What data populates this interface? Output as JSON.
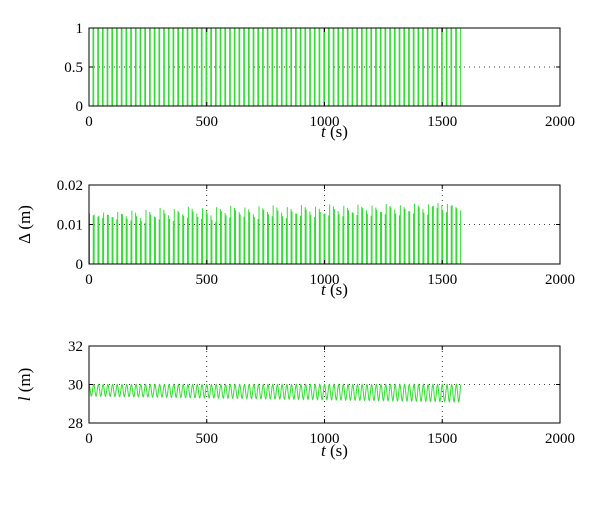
{
  "chart_data": [
    {
      "type": "line",
      "xlabel_var": "t",
      "xlabel_unit": "(s)",
      "ylabel_var": "",
      "ylabel_unit": "",
      "xlim": [
        0,
        2000
      ],
      "ylim": [
        0,
        1
      ],
      "xticks": [
        "0",
        "500",
        "1000",
        "1500",
        "2000"
      ],
      "yticks": [
        "0",
        "0.5",
        "1"
      ],
      "ytick_values": [
        0,
        0.5,
        1
      ],
      "grid": true,
      "series_color": "#33dd33",
      "series": [
        {
          "waveform": "square pulses",
          "t_start": 0,
          "t_end": 1580,
          "period": 20,
          "low": 0,
          "high": 1
        }
      ]
    },
    {
      "type": "line",
      "xlabel_var": "t",
      "xlabel_unit": "(s)",
      "ylabel_var": "Δ",
      "ylabel_unit": "(m)",
      "xlim": [
        0,
        2000
      ],
      "ylim": [
        0,
        0.02
      ],
      "xticks": [
        "0",
        "500",
        "1000",
        "1500",
        "2000"
      ],
      "yticks": [
        "0",
        "0.01",
        "0.02"
      ],
      "ytick_values": [
        0,
        0.01,
        0.02
      ],
      "grid": true,
      "series_color": "#33dd33",
      "series": [
        {
          "waveform": "pulse peaks",
          "t_start": 0,
          "t_end": 1580,
          "period": 20,
          "peaks": [
            0.0128,
            0.0125,
            0.0122,
            0.013,
            0.0124,
            0.0118,
            0.0132,
            0.0126,
            0.0115,
            0.0135,
            0.0121,
            0.0109,
            0.0137,
            0.0125,
            0.0118,
            0.0142,
            0.0128,
            0.0114,
            0.0139,
            0.0131,
            0.0122,
            0.0145,
            0.0133,
            0.0119,
            0.0141,
            0.0128,
            0.0111,
            0.0144,
            0.0134,
            0.0123,
            0.0147,
            0.0136,
            0.0125,
            0.0143,
            0.0131,
            0.0119,
            0.0146,
            0.0137,
            0.0126,
            0.0148,
            0.0135,
            0.0121,
            0.0144,
            0.0133,
            0.0127,
            0.0149,
            0.0138,
            0.0124,
            0.0145,
            0.0132,
            0.0128,
            0.0151,
            0.0139,
            0.0126,
            0.0147,
            0.0136,
            0.0129,
            0.015,
            0.0141,
            0.0127,
            0.0148,
            0.0137,
            0.0131,
            0.0152,
            0.0143,
            0.0128,
            0.0149,
            0.0139,
            0.0133,
            0.0153,
            0.0144,
            0.013,
            0.0151,
            0.0147,
            0.0154,
            0.0136,
            0.0152,
            0.0149,
            0.0141
          ]
        }
      ]
    },
    {
      "type": "line",
      "xlabel_var": "t",
      "xlabel_unit": "(s)",
      "ylabel_var": "l",
      "ylabel_unit": "(m)",
      "xlim": [
        0,
        2000
      ],
      "ylim": [
        28,
        32
      ],
      "xticks": [
        "0",
        "500",
        "1000",
        "1500",
        "2000"
      ],
      "yticks": [
        "28",
        "30",
        "32"
      ],
      "ytick_values": [
        28,
        30,
        32
      ],
      "grid": true,
      "series_color": "#33dd33",
      "series": [
        {
          "waveform": "oscillation",
          "t_start": 0,
          "t_end": 1580,
          "period": 20,
          "upper": 30.0,
          "lower_start": 29.4,
          "lower_end": 29.1
        }
      ]
    }
  ]
}
